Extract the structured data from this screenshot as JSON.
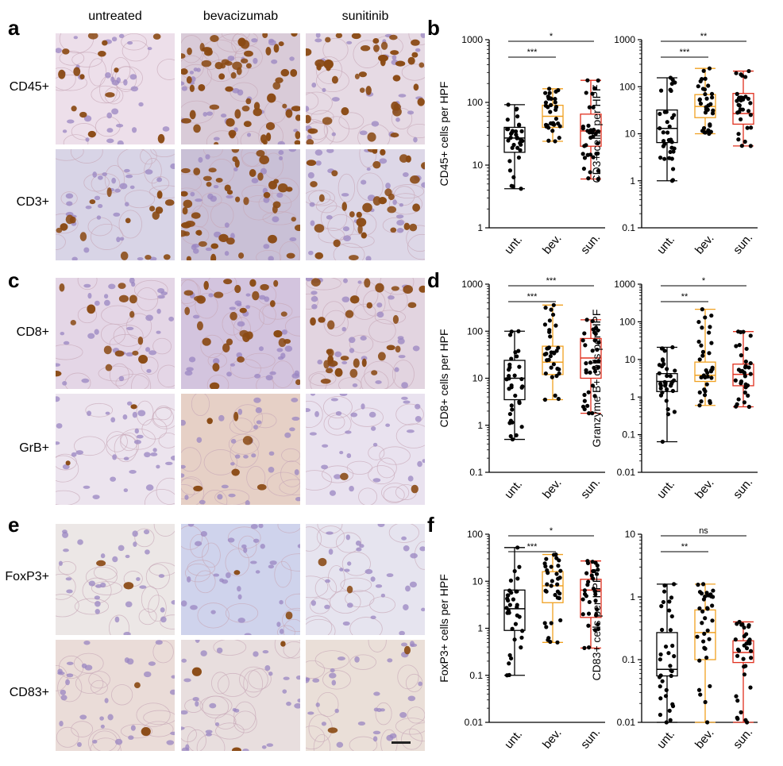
{
  "panel_letters": {
    "a": "a",
    "b": "b",
    "c": "c",
    "d": "d",
    "e": "e",
    "f": "f"
  },
  "column_headers": [
    "untreated",
    "bevacizumab",
    "sunitinib"
  ],
  "row_labels": [
    "CD45+",
    "CD3+",
    "CD8+",
    "GrB+",
    "FoxP3+",
    "CD83+"
  ],
  "colors": {
    "untreated": "#000000",
    "bevacizumab": "#f0a020",
    "sunitinib": "#e0301e",
    "stain_brown": "#8a4a14",
    "hematoxylin": "#9a86c2"
  },
  "micrograph_tints": [
    [
      "#eddfea",
      "#d9cbd8",
      "#e6dae4"
    ],
    [
      "#d8d4e6",
      "#c9c0d6",
      "#ddd7e7"
    ],
    [
      "#e4d6e6",
      "#d3c4de",
      "#e2d4e0"
    ],
    [
      "#ece4ee",
      "#e6d0c6",
      "#e9e2ef"
    ],
    [
      "#ece7e6",
      "#cfd3ec",
      "#e6e4ef"
    ],
    [
      "#eadcd8",
      "#e8dede",
      "#eadfd8"
    ]
  ],
  "chart_data": [
    {
      "panel": "b",
      "type": "box",
      "title": "",
      "ylabel": "CD45+ cells per HPF",
      "yscale": "log",
      "ylim": [
        1,
        1000
      ],
      "yticks": [
        "1",
        "10",
        "100",
        "1000"
      ],
      "categories": [
        "unt.",
        "bev.",
        "sun."
      ],
      "boxes": [
        {
          "min": 4.2,
          "q1": 16,
          "median": 27,
          "q3": 40,
          "max": 92
        },
        {
          "min": 24,
          "q1": 40,
          "median": 60,
          "q3": 90,
          "max": 165
        },
        {
          "min": 6,
          "q1": 20,
          "median": 35,
          "q3": 65,
          "max": 225
        }
      ],
      "significance": [
        {
          "label": "***",
          "from": 0,
          "to": 1
        },
        {
          "label": "*",
          "from": 0,
          "to": 2
        }
      ]
    },
    {
      "panel": "b",
      "type": "box",
      "title": "",
      "ylabel": "CD3+ cells per HPF",
      "yscale": "log",
      "ylim": [
        0.1,
        1000
      ],
      "yticks": [
        "0.1",
        "1",
        "10",
        "100",
        "1000"
      ],
      "categories": [
        "unt.",
        "bev.",
        "sun."
      ],
      "boxes": [
        {
          "min": 1,
          "q1": 6.5,
          "median": 13,
          "q3": 32,
          "max": 155
        },
        {
          "min": 10,
          "q1": 22,
          "median": 38,
          "q3": 68,
          "max": 245
        },
        {
          "min": 5.5,
          "q1": 16,
          "median": 27,
          "q3": 72,
          "max": 215
        }
      ],
      "significance": [
        {
          "label": "***",
          "from": 0,
          "to": 1
        },
        {
          "label": "**",
          "from": 0,
          "to": 2
        }
      ]
    },
    {
      "panel": "d",
      "type": "box",
      "title": "",
      "ylabel": "CD8+ cells per HPF",
      "yscale": "log",
      "ylim": [
        0.1,
        1000
      ],
      "yticks": [
        "0.1",
        "1",
        "10",
        "100",
        "1000"
      ],
      "categories": [
        "unt.",
        "bev.",
        "sun."
      ],
      "boxes": [
        {
          "min": 0.5,
          "q1": 3.5,
          "median": 10,
          "q3": 24,
          "max": 100
        },
        {
          "min": 3.5,
          "q1": 12,
          "median": 22,
          "q3": 48,
          "max": 360
        },
        {
          "min": 1.8,
          "q1": 10,
          "median": 27,
          "q3": 70,
          "max": 175
        }
      ],
      "significance": [
        {
          "label": "***",
          "from": 0,
          "to": 1
        },
        {
          "label": "***",
          "from": 0,
          "to": 2
        }
      ]
    },
    {
      "panel": "d",
      "type": "box",
      "title": "",
      "ylabel": "Granzyme B+ cells per HPF",
      "yscale": "log",
      "ylim": [
        0.01,
        1000
      ],
      "yticks": [
        "0.01",
        "0.1",
        "1",
        "10",
        "100",
        "1000"
      ],
      "categories": [
        "unt.",
        "bev.",
        "sun."
      ],
      "boxes": [
        {
          "min": 0.065,
          "q1": 1.4,
          "median": 2.6,
          "q3": 4.2,
          "max": 21
        },
        {
          "min": 0.6,
          "q1": 2.6,
          "median": 3.8,
          "q3": 8.5,
          "max": 215
        },
        {
          "min": 0.55,
          "q1": 2,
          "median": 4,
          "q3": 7.5,
          "max": 55
        }
      ],
      "significance": [
        {
          "label": "**",
          "from": 0,
          "to": 1
        },
        {
          "label": "*",
          "from": 0,
          "to": 2
        }
      ]
    },
    {
      "panel": "f",
      "type": "box",
      "title": "",
      "ylabel": "FoxP3+ cells per HPF",
      "yscale": "log",
      "ylim": [
        0.01,
        100
      ],
      "yticks": [
        "0.01",
        "0.1",
        "1",
        "10",
        "100"
      ],
      "categories": [
        "unt.",
        "bev.",
        "sun."
      ],
      "boxes": [
        {
          "min": 0.1,
          "q1": 0.9,
          "median": 2.6,
          "q3": 6.5,
          "max": 52
        },
        {
          "min": 0.5,
          "q1": 3.5,
          "median": 8,
          "q3": 16,
          "max": 37
        },
        {
          "min": 0.38,
          "q1": 1.7,
          "median": 6.5,
          "q3": 11,
          "max": 27
        }
      ],
      "significance": [
        {
          "label": "***",
          "from": 0,
          "to": 1
        },
        {
          "label": "*",
          "from": 0,
          "to": 2
        }
      ]
    },
    {
      "panel": "f",
      "type": "box",
      "title": "",
      "ylabel": "CD83+ cells per HPF",
      "yscale": "log",
      "ylim": [
        0.01,
        10
      ],
      "yticks": [
        "0.01",
        "0.1",
        "1",
        "10"
      ],
      "categories": [
        "unt.",
        "bev.",
        "sun."
      ],
      "boxes": [
        {
          "min": 0.01,
          "q1": 0.055,
          "median": 0.07,
          "q3": 0.27,
          "max": 1.6
        },
        {
          "min": 0.01,
          "q1": 0.1,
          "median": 0.27,
          "q3": 0.62,
          "max": 1.6
        },
        {
          "min": 0.01,
          "q1": 0.09,
          "median": 0.13,
          "q3": 0.2,
          "max": 0.4
        }
      ],
      "significance": [
        {
          "label": "**",
          "from": 0,
          "to": 1
        },
        {
          "label": "ns",
          "from": 0,
          "to": 2
        }
      ]
    }
  ]
}
